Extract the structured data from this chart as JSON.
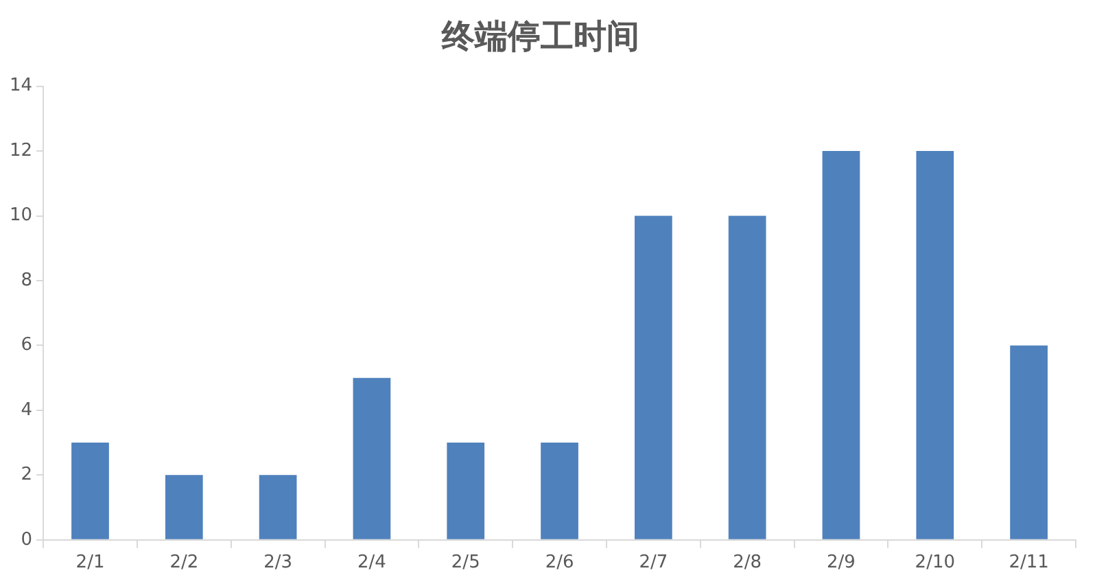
{
  "chart_data": {
    "type": "bar",
    "title": "终端停工时间",
    "categories": [
      "2/1",
      "2/2",
      "2/3",
      "2/4",
      "2/5",
      "2/6",
      "2/7",
      "2/8",
      "2/9",
      "2/10",
      "2/11"
    ],
    "values": [
      3,
      2,
      2,
      5,
      3,
      3,
      10,
      10,
      12,
      12,
      6
    ],
    "color": "#4f81bd",
    "ylim": [
      0,
      14
    ],
    "yticks": [
      0,
      2,
      4,
      6,
      8,
      10,
      12,
      14
    ],
    "grid": false,
    "legend": false
  }
}
